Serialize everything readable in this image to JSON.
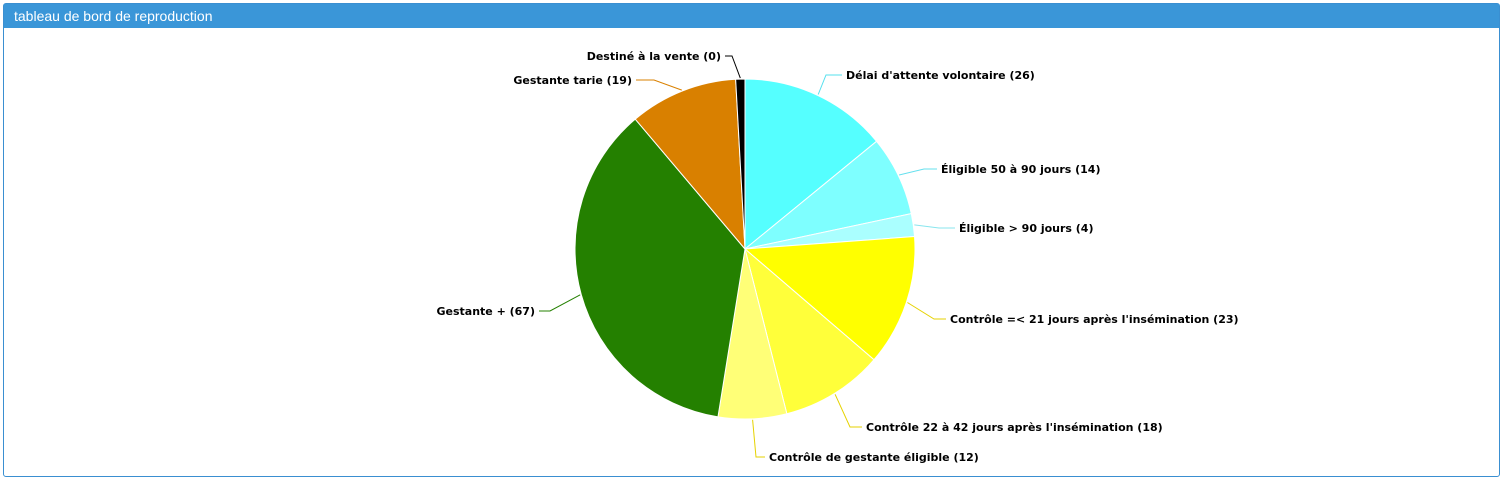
{
  "panel": {
    "title": "tableau de bord de reproduction"
  },
  "chart_data": {
    "type": "pie",
    "title": "",
    "slices": [
      {
        "label": "Délai d'attente volontaire (26)",
        "name": "Délai d'attente volontaire",
        "value": 26,
        "color": "#55ffff",
        "line_color": "#55e0ee"
      },
      {
        "label": "Éligible 50 à 90 jours (14)",
        "name": "Éligible 50 à 90 jours",
        "value": 14,
        "color": "#7effff",
        "line_color": "#66e0ee"
      },
      {
        "label": "Éligible > 90 jours (4)",
        "name": "Éligible > 90 jours",
        "value": 4,
        "color": "#aaffff",
        "line_color": "#88e6ee"
      },
      {
        "label": "Contrôle =< 21 jours après l'insémination (23)",
        "name": "Contrôle =< 21 jours après l'insémination",
        "value": 23,
        "color": "#ffff00",
        "line_color": "#e6d200"
      },
      {
        "label": "Contrôle 22 à 42 jours après l'insémination (18)",
        "name": "Contrôle 22 à 42 jours après l'insémination",
        "value": 18,
        "color": "#ffff3a",
        "line_color": "#e6d200"
      },
      {
        "label": "Contrôle de gestante éligible (12)",
        "name": "Contrôle de gestante éligible",
        "value": 12,
        "color": "#ffff77",
        "line_color": "#e6d200"
      },
      {
        "label": "Gestante + (67)",
        "name": "Gestante +",
        "value": 67,
        "color": "#248000",
        "line_color": "#248000"
      },
      {
        "label": "Gestante tarie (19)",
        "name": "Gestante tarie",
        "value": 19,
        "color": "#d98000",
        "line_color": "#d98000"
      },
      {
        "label": "Destiné à la vente (0)",
        "name": "Destiné à la vente",
        "value": 0,
        "color": "#000000",
        "line_color": "#000000"
      }
    ],
    "start_direction": "top",
    "direction": "clockwise",
    "legend": "none"
  }
}
